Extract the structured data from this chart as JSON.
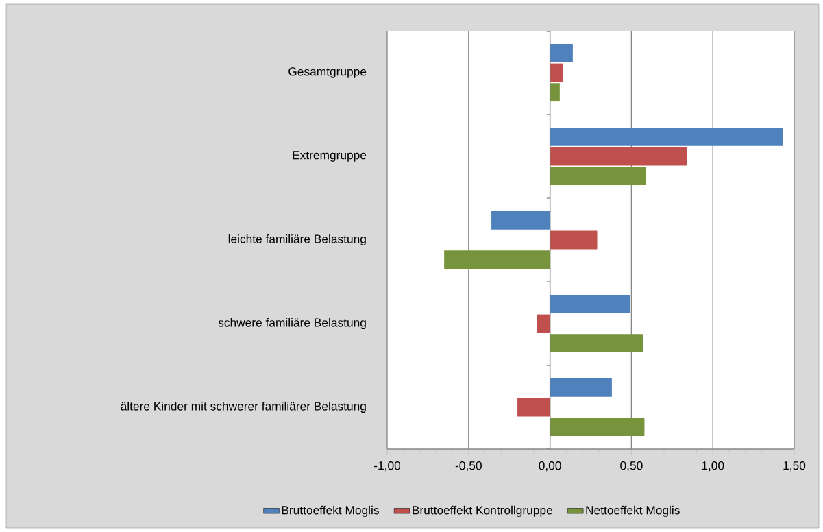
{
  "chart_data": {
    "type": "bar",
    "orientation": "horizontal",
    "categories": [
      "Gesamtgruppe",
      "Extremgruppe",
      "leichte familiäre Belastung",
      "schwere familiäre Belastung",
      "ältere Kinder mit schwerer familiärer Belastung"
    ],
    "series": [
      {
        "name": "Bruttoeffekt Moglis",
        "color": "#4f81bd",
        "values": [
          0.14,
          1.43,
          -0.36,
          0.49,
          0.38
        ]
      },
      {
        "name": "Bruttoeffekt Kontrollgruppe",
        "color": "#c0504d",
        "values": [
          0.08,
          0.84,
          0.29,
          -0.08,
          -0.2
        ]
      },
      {
        "name": "Nettoeffekt Moglis",
        "color": "#77933c",
        "values": [
          0.06,
          0.59,
          -0.65,
          0.57,
          0.58
        ]
      }
    ],
    "xlim": [
      -1,
      1.5
    ],
    "xticks": [
      {
        "value": -1,
        "label": "-1,00"
      },
      {
        "value": -0.5,
        "label": "-0,50"
      },
      {
        "value": 0,
        "label": "0,00"
      },
      {
        "value": 0.5,
        "label": "0,50"
      },
      {
        "value": 1,
        "label": "1,00"
      },
      {
        "value": 1.5,
        "label": "1,50"
      }
    ],
    "grid": "x",
    "legend": "bottom"
  }
}
